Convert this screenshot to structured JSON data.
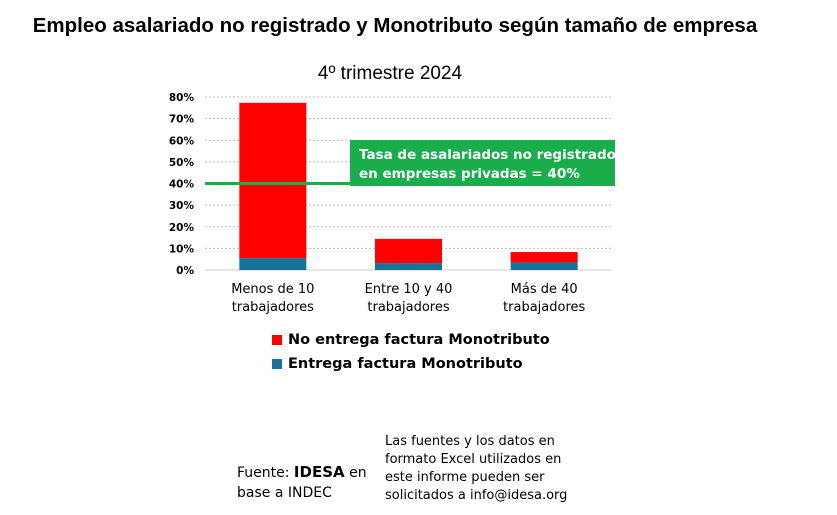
{
  "chart_data": {
    "type": "bar",
    "stacked": true,
    "title": "Empleo asalariado no registrado y Monotributo según tamaño de empresa",
    "subtitle": "4º trimestre 2024",
    "categories": [
      [
        "Menos de 10",
        "trabajadores"
      ],
      [
        "Entre 10 y 40",
        "trabajadores"
      ],
      [
        "Más de 40",
        "trabajadores"
      ]
    ],
    "series": [
      {
        "name": "Entrega factura Monotributo",
        "color": "#17729a",
        "values": [
          5.5,
          3.2,
          3.5
        ]
      },
      {
        "name": "No entrega factura Monotributo",
        "color": "#ff0000",
        "values": [
          71.8,
          11.2,
          4.8
        ]
      }
    ],
    "ylim": [
      0,
      80
    ],
    "yticks": [
      "0%",
      "10%",
      "20%",
      "30%",
      "40%",
      "50%",
      "60%",
      "70%",
      "80%"
    ],
    "grid": true,
    "reference_line": {
      "value": 40,
      "color": "#1aad4b",
      "label": [
        "Tasa de asalariados no registrados",
        "en empresas privadas = 40%"
      ]
    },
    "legend_order": [
      1,
      0
    ],
    "legend_position": "bottom"
  },
  "footer": {
    "source_prefix": "Fuente: ",
    "source_brand": "IDESA",
    "source_suffix": " en",
    "source_line2": "base a INDEC",
    "note": [
      "Las fuentes y los datos en",
      "formato Excel utilizados en",
      "este informe pueden ser",
      "solicitados a info@idesa.org"
    ]
  }
}
